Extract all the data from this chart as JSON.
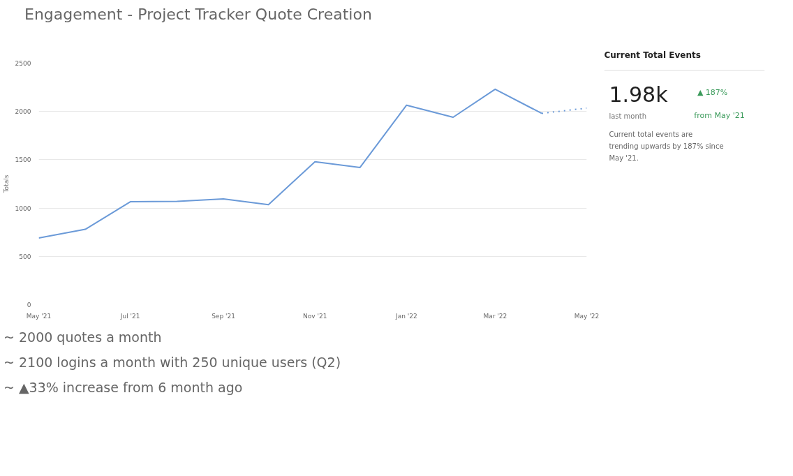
{
  "chart_data": [
    {
      "type": "line",
      "title": "Engagement - Project Tracker Quote Creation",
      "ylabel": "Totals",
      "x": [
        "2021-05",
        "2021-06",
        "2021-07",
        "2021-08",
        "2021-09",
        "2021-10",
        "2021-11",
        "2021-12",
        "2022-01",
        "2022-02",
        "2022-03",
        "2022-04"
      ],
      "series": [
        {
          "color": "#6b9ad8",
          "line_style": "solid",
          "values": [
            690,
            780,
            1065,
            1070,
            1095,
            1035,
            1480,
            1420,
            2065,
            1940,
            2230,
            1980
          ]
        },
        {
          "color": "#6b9ad8",
          "line_style": "dotted",
          "x": [
            "2022-04",
            "2022-05"
          ],
          "values": [
            1980,
            2035
          ]
        }
      ],
      "xlim": [
        "2021-05",
        "2022-05"
      ],
      "xticks": [
        {
          "value": "2021-05",
          "label": "May '21"
        },
        {
          "value": "2021-07",
          "label": "Jul '21"
        },
        {
          "value": "2021-09",
          "label": "Sep '21"
        },
        {
          "value": "2021-11",
          "label": "Nov '21"
        },
        {
          "value": "2022-01",
          "label": "Jan '22"
        },
        {
          "value": "2022-03",
          "label": "Mar '22"
        },
        {
          "value": "2022-05",
          "label": "May '22"
        }
      ],
      "ylim": [
        0,
        2500
      ],
      "yticks": [
        0,
        500,
        1000,
        1500,
        2000,
        2500
      ],
      "grid": "y",
      "annotations": [
        "~ 2000 quotes a month",
        "~ 2100 logins a month with 250 unique users (Q2)",
        "~ ▲33% increase from 6 month ago"
      ]
    },
    {
      "type": "other",
      "title": "Current Total Events",
      "annotations": [
        "1.98k",
        "▲ 187%",
        "last month",
        "from May '21",
        "Current total events are trending upwards by 187% since May '21."
      ]
    }
  ]
}
